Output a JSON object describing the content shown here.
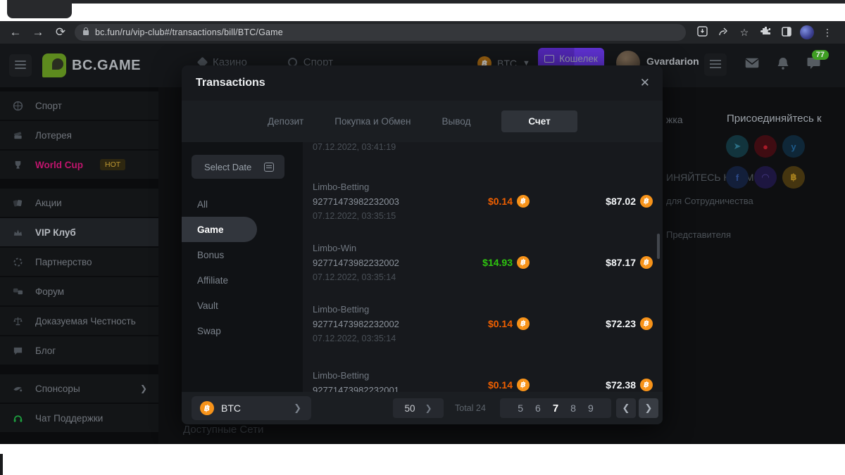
{
  "colors": {
    "bitcoin": "#f7931a",
    "amount_negative": "#f06000",
    "amount_positive": "#2ec50f",
    "brand_purple": "#6c33ee",
    "brand_green": "#7ab82a"
  },
  "browser": {
    "url": "bc.fun/ru/vip-club#/transactions/bill/BTC/Game"
  },
  "header": {
    "logo_text": "BC.GAME",
    "nav_casino": "Казино",
    "nav_sport": "Спорт",
    "currency_label": "BTC",
    "wallet_label": "Кошелек",
    "username": "Gvardarion",
    "vip_level": "4",
    "chat_badge_count": "77"
  },
  "sidebar": {
    "items": [
      {
        "label": "Спорт",
        "icon": "basketball-icon",
        "group": 1
      },
      {
        "label": "Лотерея",
        "icon": "ticket-icon",
        "group": 1
      },
      {
        "label": "World Cup",
        "icon": "trophy-icon",
        "badge": "HOT",
        "accent": true,
        "group": 1
      },
      {
        "label": "Акции",
        "icon": "tags-icon",
        "group": 2
      },
      {
        "label": "VIP Клуб",
        "icon": "crown-icon",
        "active": true,
        "group": 2
      },
      {
        "label": "Партнерство",
        "icon": "partnership-icon",
        "group": 2
      },
      {
        "label": "Форум",
        "icon": "forum-icon",
        "group": 2
      },
      {
        "label": "Доказуемая Честность",
        "icon": "fairness-icon",
        "group": 2
      },
      {
        "label": "Блог",
        "icon": "blog-icon",
        "group": 2
      },
      {
        "label": "Спонсоры",
        "icon": "sponsors-icon",
        "chevron": true,
        "group": 3
      },
      {
        "label": "Чат Поддержки",
        "icon": "headset-icon",
        "green": true,
        "group": 3
      }
    ]
  },
  "modal": {
    "title": "Transactions",
    "tabs": [
      {
        "label": "Депозит"
      },
      {
        "label": "Покупка и Обмен"
      },
      {
        "label": "Вывод"
      },
      {
        "label": "Счет",
        "active": true
      }
    ],
    "filter": {
      "date_button_label": "Select Date",
      "items": [
        {
          "label": "All"
        },
        {
          "label": "Game",
          "active": true
        },
        {
          "label": "Bonus"
        },
        {
          "label": "Affiliate"
        },
        {
          "label": "Vault"
        },
        {
          "label": "Swap"
        }
      ]
    },
    "partial_top_date": "07.12.2022, 03:41:19",
    "transactions": [
      {
        "name": "Limbo-Betting",
        "id": "92771473982232003",
        "date": "07.12.2022, 03:35:15",
        "amount": "$0.14",
        "amount_color": "orange",
        "balance": "$87.02"
      },
      {
        "name": "Limbo-Win",
        "id": "92771473982232002",
        "date": "07.12.2022, 03:35:14",
        "amount": "$14.93",
        "amount_color": "green",
        "balance": "$87.17"
      },
      {
        "name": "Limbo-Betting",
        "id": "92771473982232002",
        "date": "07.12.2022, 03:35:14",
        "amount": "$0.14",
        "amount_color": "orange",
        "balance": "$72.23"
      },
      {
        "name": "Limbo-Betting",
        "id": "92771473982232001",
        "date": "",
        "amount": "$0.14",
        "amount_color": "orange",
        "balance": "$72.38"
      }
    ],
    "footer": {
      "currency": "BTC",
      "page_size": "50",
      "total_label": "Total 24",
      "pages": [
        "5",
        "6",
        "7",
        "8",
        "9"
      ],
      "active_page": "7"
    }
  },
  "background": {
    "support_fragment": "жка",
    "join_heading": "Присоединяйтесь к",
    "join_fragment": "ИНЯЙТЕСЬ К НАМ",
    "cooperation_fragment": "для Сотрудничества",
    "representative_fragment": "Представителя",
    "networks_fragment": "Доступные Сети",
    "social": [
      {
        "icon": "telegram-icon"
      },
      {
        "icon": "cat-icon"
      },
      {
        "icon": "twitter-icon"
      },
      {
        "icon": "facebook-icon"
      },
      {
        "icon": "discord-icon"
      },
      {
        "icon": "bitcointalk-icon"
      }
    ]
  }
}
